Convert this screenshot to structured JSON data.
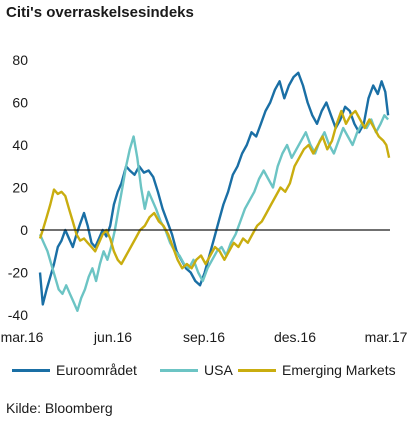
{
  "chart_data": {
    "type": "line",
    "title": "Citi's overraskelsesindeks",
    "xlabel": "",
    "ylabel": "",
    "ylim": [
      -40,
      80
    ],
    "y_ticks": [
      80,
      60,
      40,
      20,
      0,
      -20,
      -40
    ],
    "x_ticks": [
      "mar.16",
      "jun.16",
      "sep.16",
      "des.16",
      "mar.17"
    ],
    "x_range": [
      "2016-03-01",
      "2017-03-10"
    ],
    "grid": false,
    "legend_position": "bottom",
    "series": [
      {
        "name": "Euroområdet",
        "color": "#1a6fa5",
        "points": [
          [
            "2016-03-01",
            -20
          ],
          [
            "2016-03-04",
            -35
          ],
          [
            "2016-03-08",
            -28
          ],
          [
            "2016-03-12",
            -22
          ],
          [
            "2016-03-16",
            -16
          ],
          [
            "2016-03-20",
            -8
          ],
          [
            "2016-03-24",
            -5
          ],
          [
            "2016-03-28",
            0
          ],
          [
            "2016-04-01",
            -4
          ],
          [
            "2016-04-05",
            -8
          ],
          [
            "2016-04-09",
            -2
          ],
          [
            "2016-04-13",
            3
          ],
          [
            "2016-04-17",
            8
          ],
          [
            "2016-04-21",
            2
          ],
          [
            "2016-04-25",
            -6
          ],
          [
            "2016-04-29",
            -8
          ],
          [
            "2016-05-03",
            -4
          ],
          [
            "2016-05-07",
            0
          ],
          [
            "2016-05-11",
            -3
          ],
          [
            "2016-05-15",
            2
          ],
          [
            "2016-05-19",
            12
          ],
          [
            "2016-05-23",
            18
          ],
          [
            "2016-05-27",
            22
          ],
          [
            "2016-06-01",
            30
          ],
          [
            "2016-06-05",
            28
          ],
          [
            "2016-06-10",
            26
          ],
          [
            "2016-06-15",
            30
          ],
          [
            "2016-06-20",
            27
          ],
          [
            "2016-06-25",
            28
          ],
          [
            "2016-06-30",
            25
          ],
          [
            "2016-07-05",
            18
          ],
          [
            "2016-07-10",
            10
          ],
          [
            "2016-07-15",
            4
          ],
          [
            "2016-07-20",
            -2
          ],
          [
            "2016-07-25",
            -10
          ],
          [
            "2016-07-30",
            -14
          ],
          [
            "2016-08-04",
            -18
          ],
          [
            "2016-08-09",
            -20
          ],
          [
            "2016-08-14",
            -24
          ],
          [
            "2016-08-19",
            -26
          ],
          [
            "2016-08-24",
            -20
          ],
          [
            "2016-08-29",
            -12
          ],
          [
            "2016-09-03",
            -4
          ],
          [
            "2016-09-08",
            4
          ],
          [
            "2016-09-13",
            12
          ],
          [
            "2016-09-18",
            18
          ],
          [
            "2016-09-23",
            26
          ],
          [
            "2016-09-28",
            30
          ],
          [
            "2016-10-03",
            36
          ],
          [
            "2016-10-08",
            40
          ],
          [
            "2016-10-13",
            46
          ],
          [
            "2016-10-18",
            44
          ],
          [
            "2016-10-23",
            50
          ],
          [
            "2016-10-28",
            56
          ],
          [
            "2016-11-02",
            60
          ],
          [
            "2016-11-07",
            66
          ],
          [
            "2016-11-12",
            70
          ],
          [
            "2016-11-17",
            62
          ],
          [
            "2016-11-22",
            68
          ],
          [
            "2016-11-27",
            72
          ],
          [
            "2016-12-02",
            74
          ],
          [
            "2016-12-07",
            68
          ],
          [
            "2016-12-12",
            60
          ],
          [
            "2016-12-17",
            54
          ],
          [
            "2016-12-22",
            50
          ],
          [
            "2016-12-27",
            56
          ],
          [
            "2017-01-01",
            60
          ],
          [
            "2017-01-06",
            54
          ],
          [
            "2017-01-11",
            48
          ],
          [
            "2017-01-16",
            52
          ],
          [
            "2017-01-21",
            58
          ],
          [
            "2017-01-26",
            56
          ],
          [
            "2017-01-31",
            50
          ],
          [
            "2017-02-05",
            46
          ],
          [
            "2017-02-10",
            50
          ],
          [
            "2017-02-15",
            62
          ],
          [
            "2017-02-20",
            68
          ],
          [
            "2017-02-25",
            64
          ],
          [
            "2017-03-01",
            70
          ],
          [
            "2017-03-05",
            65
          ],
          [
            "2017-03-08",
            54
          ]
        ]
      },
      {
        "name": "USA",
        "color": "#6cc4c4",
        "points": [
          [
            "2016-03-01",
            -2
          ],
          [
            "2016-03-05",
            -6
          ],
          [
            "2016-03-09",
            -10
          ],
          [
            "2016-03-13",
            -16
          ],
          [
            "2016-03-17",
            -22
          ],
          [
            "2016-03-21",
            -28
          ],
          [
            "2016-03-25",
            -30
          ],
          [
            "2016-03-29",
            -26
          ],
          [
            "2016-04-02",
            -30
          ],
          [
            "2016-04-06",
            -34
          ],
          [
            "2016-04-10",
            -38
          ],
          [
            "2016-04-14",
            -32
          ],
          [
            "2016-04-18",
            -28
          ],
          [
            "2016-04-22",
            -22
          ],
          [
            "2016-04-26",
            -18
          ],
          [
            "2016-04-30",
            -24
          ],
          [
            "2016-05-04",
            -16
          ],
          [
            "2016-05-08",
            -10
          ],
          [
            "2016-05-12",
            -14
          ],
          [
            "2016-05-16",
            -8
          ],
          [
            "2016-05-20",
            0
          ],
          [
            "2016-05-24",
            10
          ],
          [
            "2016-05-28",
            20
          ],
          [
            "2016-06-01",
            30
          ],
          [
            "2016-06-05",
            38
          ],
          [
            "2016-06-09",
            44
          ],
          [
            "2016-06-13",
            34
          ],
          [
            "2016-06-17",
            20
          ],
          [
            "2016-06-21",
            10
          ],
          [
            "2016-06-25",
            18
          ],
          [
            "2016-06-29",
            14
          ],
          [
            "2016-07-03",
            10
          ],
          [
            "2016-07-08",
            4
          ],
          [
            "2016-07-13",
            0
          ],
          [
            "2016-07-18",
            -6
          ],
          [
            "2016-07-23",
            -10
          ],
          [
            "2016-07-28",
            -12
          ],
          [
            "2016-08-02",
            -16
          ],
          [
            "2016-08-07",
            -18
          ],
          [
            "2016-08-12",
            -14
          ],
          [
            "2016-08-17",
            -20
          ],
          [
            "2016-08-22",
            -24
          ],
          [
            "2016-08-27",
            -18
          ],
          [
            "2016-09-01",
            -14
          ],
          [
            "2016-09-06",
            -10
          ],
          [
            "2016-09-11",
            -8
          ],
          [
            "2016-09-16",
            -12
          ],
          [
            "2016-09-21",
            -6
          ],
          [
            "2016-09-26",
            -2
          ],
          [
            "2016-10-01",
            4
          ],
          [
            "2016-10-06",
            10
          ],
          [
            "2016-10-11",
            14
          ],
          [
            "2016-10-16",
            18
          ],
          [
            "2016-10-21",
            24
          ],
          [
            "2016-10-26",
            28
          ],
          [
            "2016-10-31",
            24
          ],
          [
            "2016-11-05",
            20
          ],
          [
            "2016-11-10",
            30
          ],
          [
            "2016-11-15",
            36
          ],
          [
            "2016-11-20",
            40
          ],
          [
            "2016-11-25",
            34
          ],
          [
            "2016-11-30",
            38
          ],
          [
            "2016-12-05",
            42
          ],
          [
            "2016-12-10",
            46
          ],
          [
            "2016-12-15",
            40
          ],
          [
            "2016-12-20",
            36
          ],
          [
            "2016-12-25",
            42
          ],
          [
            "2016-12-30",
            46
          ],
          [
            "2017-01-04",
            40
          ],
          [
            "2017-01-09",
            36
          ],
          [
            "2017-01-14",
            42
          ],
          [
            "2017-01-19",
            48
          ],
          [
            "2017-01-24",
            44
          ],
          [
            "2017-01-29",
            40
          ],
          [
            "2017-02-03",
            46
          ],
          [
            "2017-02-08",
            50
          ],
          [
            "2017-02-13",
            48
          ],
          [
            "2017-02-18",
            52
          ],
          [
            "2017-02-23",
            46
          ],
          [
            "2017-02-28",
            50
          ],
          [
            "2017-03-04",
            54
          ],
          [
            "2017-03-08",
            52
          ]
        ]
      },
      {
        "name": "Emerging Markets",
        "color": "#c9ad0f",
        "points": [
          [
            "2016-03-01",
            -4
          ],
          [
            "2016-03-04",
            0
          ],
          [
            "2016-03-08",
            6
          ],
          [
            "2016-03-12",
            12
          ],
          [
            "2016-03-16",
            19
          ],
          [
            "2016-03-20",
            17
          ],
          [
            "2016-03-24",
            18
          ],
          [
            "2016-03-28",
            16
          ],
          [
            "2016-04-01",
            10
          ],
          [
            "2016-04-05",
            4
          ],
          [
            "2016-04-09",
            -2
          ],
          [
            "2016-04-13",
            -5
          ],
          [
            "2016-04-17",
            -4
          ],
          [
            "2016-04-21",
            -6
          ],
          [
            "2016-04-25",
            -8
          ],
          [
            "2016-04-29",
            -10
          ],
          [
            "2016-05-03",
            -6
          ],
          [
            "2016-05-07",
            -2
          ],
          [
            "2016-05-11",
            0
          ],
          [
            "2016-05-15",
            -4
          ],
          [
            "2016-05-19",
            -10
          ],
          [
            "2016-05-23",
            -14
          ],
          [
            "2016-05-27",
            -16
          ],
          [
            "2016-06-01",
            -12
          ],
          [
            "2016-06-06",
            -8
          ],
          [
            "2016-06-11",
            -4
          ],
          [
            "2016-06-16",
            0
          ],
          [
            "2016-06-21",
            2
          ],
          [
            "2016-06-26",
            6
          ],
          [
            "2016-07-01",
            8
          ],
          [
            "2016-07-06",
            4
          ],
          [
            "2016-07-11",
            2
          ],
          [
            "2016-07-16",
            -2
          ],
          [
            "2016-07-21",
            -8
          ],
          [
            "2016-07-26",
            -14
          ],
          [
            "2016-07-31",
            -18
          ],
          [
            "2016-08-05",
            -16
          ],
          [
            "2016-08-10",
            -18
          ],
          [
            "2016-08-15",
            -14
          ],
          [
            "2016-08-20",
            -12
          ],
          [
            "2016-08-25",
            -16
          ],
          [
            "2016-08-30",
            -12
          ],
          [
            "2016-09-04",
            -8
          ],
          [
            "2016-09-09",
            -10
          ],
          [
            "2016-09-14",
            -14
          ],
          [
            "2016-09-19",
            -10
          ],
          [
            "2016-09-24",
            -6
          ],
          [
            "2016-09-29",
            -8
          ],
          [
            "2016-10-04",
            -4
          ],
          [
            "2016-10-09",
            -6
          ],
          [
            "2016-10-14",
            -2
          ],
          [
            "2016-10-19",
            2
          ],
          [
            "2016-10-24",
            4
          ],
          [
            "2016-10-29",
            8
          ],
          [
            "2016-11-03",
            12
          ],
          [
            "2016-11-08",
            16
          ],
          [
            "2016-11-13",
            20
          ],
          [
            "2016-11-18",
            18
          ],
          [
            "2016-11-23",
            22
          ],
          [
            "2016-11-28",
            30
          ],
          [
            "2016-12-03",
            34
          ],
          [
            "2016-12-08",
            38
          ],
          [
            "2016-12-13",
            40
          ],
          [
            "2016-12-18",
            36
          ],
          [
            "2016-12-23",
            40
          ],
          [
            "2016-12-28",
            44
          ],
          [
            "2017-01-02",
            38
          ],
          [
            "2017-01-07",
            42
          ],
          [
            "2017-01-12",
            50
          ],
          [
            "2017-01-17",
            56
          ],
          [
            "2017-01-22",
            50
          ],
          [
            "2017-01-27",
            54
          ],
          [
            "2017-02-01",
            56
          ],
          [
            "2017-02-06",
            52
          ],
          [
            "2017-02-11",
            48
          ],
          [
            "2017-02-16",
            52
          ],
          [
            "2017-02-21",
            48
          ],
          [
            "2017-02-26",
            44
          ],
          [
            "2017-03-03",
            42
          ],
          [
            "2017-03-06",
            40
          ],
          [
            "2017-03-09",
            34
          ]
        ]
      }
    ]
  },
  "source": "Kilde: Bloomberg"
}
